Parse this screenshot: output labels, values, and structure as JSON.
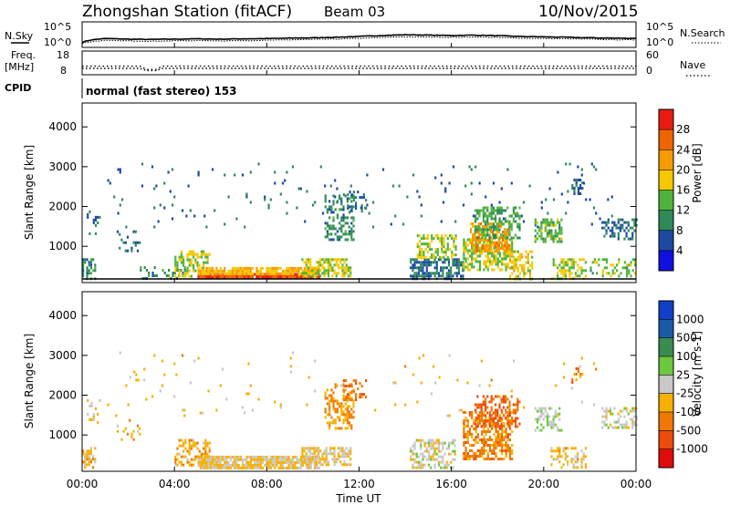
{
  "header": {
    "title": "Zhongshan Station (fitACF)",
    "beam": "Beam 03",
    "date": "10/Nov/2015"
  },
  "top_panels": {
    "nsky_label": "N.Sky",
    "nsky_ticks": [
      "10^5",
      "10^0"
    ],
    "nsearch_label": "N.Search",
    "nsearch_ticks": [
      "10^5",
      "10^0"
    ],
    "freq_label": "Freq.",
    "freq_unit": "[MHz]",
    "freq_ticks": [
      "18",
      "8"
    ],
    "nave_label": "Nave",
    "nave_ticks": [
      "60",
      "0"
    ],
    "cpid_label": "CPID",
    "cpid_value": "normal (fast stereo) 153"
  },
  "x_axis": {
    "label": "Time UT",
    "ticks": [
      "00:00",
      "04:00",
      "08:00",
      "12:00",
      "16:00",
      "20:00",
      "00:00"
    ]
  },
  "colors": {
    "power_scale": [
      "#1010e0",
      "#1c4aa0",
      "#2f8a5a",
      "#50b43c",
      "#f5c800",
      "#f59a00",
      "#f06400",
      "#e81c10"
    ],
    "velocity_scale": [
      "#1040c8",
      "#1c5aa8",
      "#3a8c50",
      "#6cc83c",
      "#c8c8c8",
      "#f7b000",
      "#f07800",
      "#ea4c0c",
      "#e00c0c"
    ]
  },
  "chart_data": [
    {
      "type": "line",
      "title": "N.Sky / N.Search",
      "x_unit": "hours UT",
      "xlim": [
        0,
        24
      ],
      "y_scale": "log",
      "series": [
        {
          "name": "N.Sky",
          "x": [
            0,
            1,
            2,
            3,
            4,
            5,
            6,
            7,
            8,
            9,
            10,
            11,
            12,
            13,
            14,
            15,
            16,
            17,
            18,
            19,
            20,
            21,
            22,
            23,
            24
          ],
          "values": [
            5,
            40,
            30,
            25,
            30,
            35,
            30,
            35,
            40,
            50,
            60,
            80,
            120,
            200,
            300,
            250,
            200,
            250,
            180,
            120,
            100,
            80,
            60,
            50,
            45
          ]
        },
        {
          "name": "N.Search",
          "x": [
            0,
            1,
            2,
            3,
            4,
            5,
            6,
            7,
            8,
            9,
            10,
            11,
            12,
            13,
            14,
            15,
            16,
            17,
            18,
            19,
            20,
            21,
            22,
            23,
            24
          ],
          "values": [
            3,
            15,
            12,
            10,
            12,
            14,
            12,
            14,
            16,
            20,
            25,
            30,
            45,
            70,
            100,
            90,
            80,
            90,
            70,
            50,
            40,
            35,
            28,
            22,
            20
          ]
        }
      ]
    },
    {
      "type": "line",
      "title": "Freq. / Nave",
      "x_unit": "hours UT",
      "xlim": [
        0,
        24
      ],
      "series": [
        {
          "name": "Freq.",
          "x": [
            0,
            2.5,
            2.8,
            3.2,
            3.5,
            24
          ],
          "values": [
            10.5,
            10.5,
            9.5,
            9.5,
            10.5,
            10.5
          ]
        },
        {
          "name": "Nave",
          "x": [
            0,
            2.5,
            2.8,
            3.2,
            3.5,
            24
          ],
          "values": [
            21,
            21,
            12,
            12,
            21,
            21
          ]
        }
      ]
    },
    {
      "type": "heatmap",
      "title": "Power",
      "ylabel": "Slant Range [km]",
      "yticks": [
        "1000",
        "2000",
        "3000",
        "4000"
      ],
      "ylim": [
        180,
        4600
      ],
      "xlim": [
        0,
        24
      ],
      "colorbar_label": "Power [dB]",
      "colorbar_ticks": [
        "4",
        "8",
        "12",
        "16",
        "20",
        "24",
        "28"
      ],
      "colorbar_range": [
        0,
        32
      ],
      "regions": [
        {
          "t": [
            0.0,
            0.6
          ],
          "r": [
            200,
            700
          ],
          "v": 10,
          "d": 0.55
        },
        {
          "t": [
            0.2,
            0.8
          ],
          "r": [
            1300,
            1900
          ],
          "v": 8,
          "d": 0.25
        },
        {
          "t": [
            1.5,
            2.5
          ],
          "r": [
            900,
            1400
          ],
          "v": 8,
          "d": 0.2
        },
        {
          "t": [
            2.5,
            4.5
          ],
          "r": [
            200,
            500
          ],
          "v": 10,
          "d": 0.25
        },
        {
          "t": [
            4.0,
            5.5
          ],
          "r": [
            250,
            900
          ],
          "v": 16,
          "d": 0.55
        },
        {
          "t": [
            5.0,
            10.3
          ],
          "r": [
            200,
            330
          ],
          "v": 28,
          "d": 0.95
        },
        {
          "t": [
            5.0,
            10.3
          ],
          "r": [
            330,
            480
          ],
          "v": 20,
          "d": 0.85
        },
        {
          "t": [
            9.5,
            11.6
          ],
          "r": [
            250,
            700
          ],
          "v": 16,
          "d": 0.7
        },
        {
          "t": [
            10.5,
            11.8
          ],
          "r": [
            1200,
            2300
          ],
          "v": 10,
          "d": 0.4
        },
        {
          "t": [
            11.3,
            12.3
          ],
          "r": [
            1900,
            2400
          ],
          "v": 8,
          "d": 0.4
        },
        {
          "t": [
            14.2,
            16.5
          ],
          "r": [
            200,
            700
          ],
          "v": 8,
          "d": 0.6
        },
        {
          "t": [
            14.5,
            16.2
          ],
          "r": [
            700,
            1300
          ],
          "v": 16,
          "d": 0.5
        },
        {
          "t": [
            16.5,
            18.6
          ],
          "r": [
            400,
            1200
          ],
          "v": 16,
          "d": 0.65
        },
        {
          "t": [
            16.8,
            18.5
          ],
          "r": [
            900,
            1600
          ],
          "v": 22,
          "d": 0.6
        },
        {
          "t": [
            17.0,
            19.0
          ],
          "r": [
            1200,
            2000
          ],
          "v": 12,
          "d": 0.5
        },
        {
          "t": [
            18.5,
            19.5
          ],
          "r": [
            200,
            900
          ],
          "v": 18,
          "d": 0.55
        },
        {
          "t": [
            19.6,
            20.8
          ],
          "r": [
            1100,
            1700
          ],
          "v": 14,
          "d": 0.6
        },
        {
          "t": [
            20.3,
            21.8
          ],
          "r": [
            200,
            700
          ],
          "v": 16,
          "d": 0.5
        },
        {
          "t": [
            21.2,
            21.7
          ],
          "r": [
            2300,
            2700
          ],
          "v": 8,
          "d": 0.5
        },
        {
          "t": [
            22.5,
            24.0
          ],
          "r": [
            1200,
            1700
          ],
          "v": 8,
          "d": 0.45
        },
        {
          "t": [
            22.0,
            24.0
          ],
          "r": [
            250,
            700
          ],
          "v": 14,
          "d": 0.4
        },
        {
          "t": [
            1.0,
            23.0
          ],
          "r": [
            1500,
            3100
          ],
          "v": 8,
          "d": 0.025
        }
      ]
    },
    {
      "type": "heatmap",
      "title": "Velocity",
      "ylabel": "Slant Range [km]",
      "yticks": [
        "1000",
        "2000",
        "3000",
        "4000"
      ],
      "ylim": [
        180,
        4600
      ],
      "xlim": [
        0,
        24
      ],
      "colorbar_label": "Velocity [m s-1]",
      "colorbar_ticks": [
        "1000",
        "500",
        "100",
        "25",
        "-25",
        "-100",
        "-500",
        "-1000"
      ],
      "colorbar_range": [
        -1200,
        1200
      ],
      "regions": [
        {
          "t": [
            0.0,
            0.6
          ],
          "r": [
            200,
            700
          ],
          "v": -300,
          "d": 0.5
        },
        {
          "t": [
            0.2,
            0.8
          ],
          "r": [
            1300,
            1900
          ],
          "v": -200,
          "d": 0.2
        },
        {
          "t": [
            1.5,
            2.5
          ],
          "r": [
            900,
            1400
          ],
          "v": -300,
          "d": 0.2
        },
        {
          "t": [
            4.0,
            5.5
          ],
          "r": [
            250,
            900
          ],
          "v": -300,
          "d": 0.5
        },
        {
          "t": [
            5.0,
            10.3
          ],
          "r": [
            200,
            480
          ],
          "v": -150,
          "d": 0.85
        },
        {
          "t": [
            9.5,
            11.6
          ],
          "r": [
            250,
            700
          ],
          "v": -150,
          "d": 0.6
        },
        {
          "t": [
            10.5,
            11.8
          ],
          "r": [
            1200,
            2300
          ],
          "v": -400,
          "d": 0.4
        },
        {
          "t": [
            11.3,
            12.3
          ],
          "r": [
            1900,
            2400
          ],
          "v": -600,
          "d": 0.4
        },
        {
          "t": [
            14.2,
            16.2
          ],
          "r": [
            200,
            900
          ],
          "v": 0,
          "d": 0.5
        },
        {
          "t": [
            16.5,
            18.6
          ],
          "r": [
            400,
            1600
          ],
          "v": -500,
          "d": 0.6
        },
        {
          "t": [
            17.0,
            19.0
          ],
          "r": [
            1200,
            2000
          ],
          "v": -700,
          "d": 0.45
        },
        {
          "t": [
            19.6,
            20.8
          ],
          "r": [
            1100,
            1700
          ],
          "v": 100,
          "d": 0.4
        },
        {
          "t": [
            20.3,
            21.8
          ],
          "r": [
            200,
            700
          ],
          "v": -200,
          "d": 0.45
        },
        {
          "t": [
            21.2,
            21.7
          ],
          "r": [
            2300,
            2700
          ],
          "v": -500,
          "d": 0.5
        },
        {
          "t": [
            22.5,
            24.0
          ],
          "r": [
            1200,
            1700
          ],
          "v": 0,
          "d": 0.5
        },
        {
          "t": [
            1.0,
            23.0
          ],
          "r": [
            1500,
            3100
          ],
          "v": -200,
          "d": 0.02
        }
      ]
    }
  ]
}
